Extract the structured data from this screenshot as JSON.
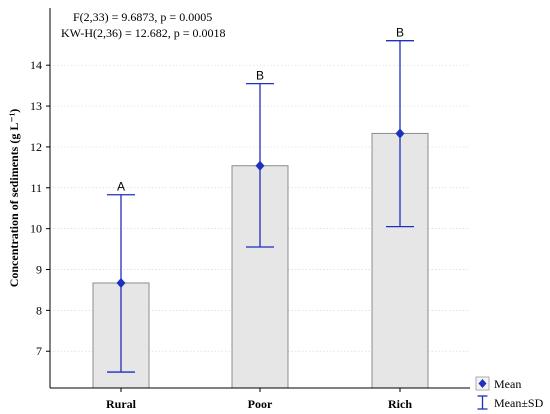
{
  "chart_data": {
    "type": "bar",
    "categories": [
      "Rural",
      "Poor",
      "Rich"
    ],
    "values": [
      8.67,
      11.54,
      12.33
    ],
    "sd_low": [
      6.49,
      9.55,
      10.05
    ],
    "sd_high": [
      10.83,
      13.55,
      14.6
    ],
    "group_letters": [
      "A",
      "B",
      "B"
    ],
    "ylabel": "Concentration of sediments (g L⁻¹)",
    "ylim": [
      6.1,
      15.4
    ],
    "yticks": [
      "7",
      "8",
      "9",
      "10",
      "11",
      "12",
      "13",
      "14"
    ],
    "grid": true,
    "annotations": [
      "F(2,33) = 9.6873, p = 0.0005",
      "KW-H(2,36) = 12.682, p = 0.0018"
    ],
    "legend": {
      "placement": "bottom-right",
      "items": [
        "Mean",
        "Mean±SD"
      ]
    },
    "colors": {
      "bar_fill": "#e6e6e6",
      "bar_stroke": "#8c8c8c",
      "error": "#1f2fbf",
      "mean_marker": "#1f2fbf"
    }
  }
}
